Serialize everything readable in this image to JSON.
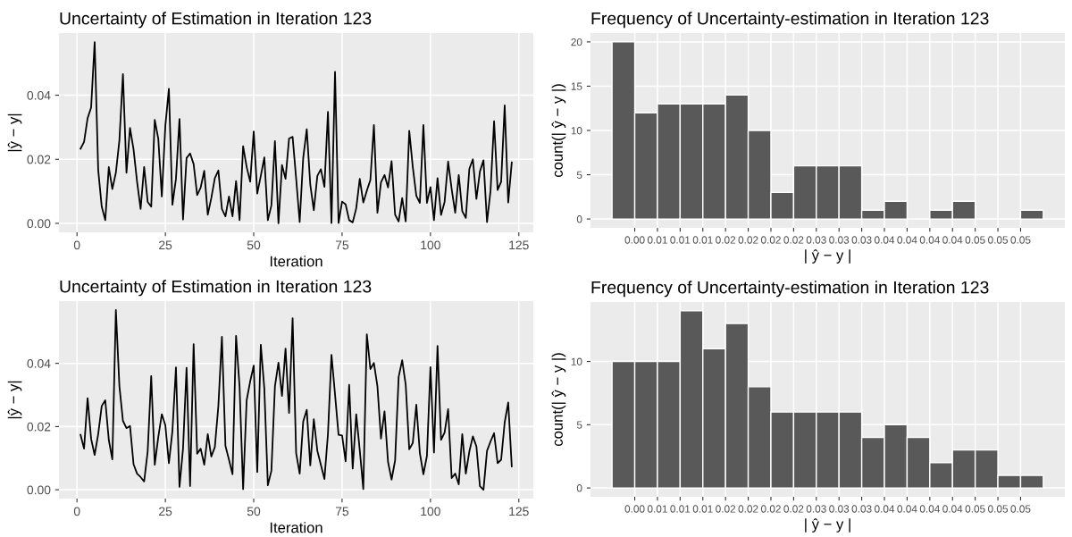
{
  "chart_data": [
    {
      "type": "line",
      "title": "Uncertainty of Estimation in Iteration 123",
      "xlabel": "Iteration",
      "ylabel": "|ŷ − y|",
      "color": "#000000",
      "grid": true,
      "x": [
        1,
        2,
        3,
        4,
        5,
        6,
        7,
        8,
        9,
        10,
        11,
        12,
        13,
        14,
        15,
        16,
        17,
        18,
        19,
        20,
        21,
        22,
        23,
        24,
        25,
        26,
        27,
        28,
        29,
        30,
        31,
        32,
        33,
        34,
        35,
        36,
        37,
        38,
        39,
        40,
        41,
        42,
        43,
        44,
        45,
        46,
        47,
        48,
        49,
        50,
        51,
        52,
        53,
        54,
        55,
        56,
        57,
        58,
        59,
        60,
        61,
        62,
        63,
        64,
        65,
        66,
        67,
        68,
        69,
        70,
        71,
        72,
        73,
        74,
        75,
        76,
        77,
        78,
        79,
        80,
        81,
        82,
        83,
        84,
        85,
        86,
        87,
        88,
        89,
        90,
        91,
        92,
        93,
        94,
        95,
        96,
        97,
        98,
        99,
        100,
        101,
        102,
        103,
        104,
        105,
        106,
        107,
        108,
        109,
        110,
        111,
        112,
        113,
        114,
        115,
        116,
        117,
        118,
        119,
        120,
        121,
        122,
        123
      ],
      "values": [
        0.0233,
        0.0254,
        0.0328,
        0.0362,
        0.0566,
        0.0167,
        0.0052,
        0.001,
        0.0176,
        0.0107,
        0.0158,
        0.0259,
        0.0466,
        0.0158,
        0.0298,
        0.0231,
        0.013,
        0.0045,
        0.0176,
        0.0067,
        0.0052,
        0.0323,
        0.0264,
        0.0084,
        0.0305,
        0.042,
        0.0058,
        0.0139,
        0.0326,
        0.0012,
        0.0204,
        0.0218,
        0.0185,
        0.0088,
        0.0112,
        0.0164,
        0.0027,
        0.0079,
        0.0141,
        0.0165,
        0.0045,
        0.0022,
        0.0084,
        0.0022,
        0.0132,
        0.001,
        0.0241,
        0.0176,
        0.013,
        0.0287,
        0.0093,
        0.0148,
        0.0206,
        0.001,
        0.0056,
        0.0257,
        0.0,
        0.0182,
        0.0139,
        0.0265,
        0.027,
        0.014,
        0.0004,
        0.0204,
        0.0294,
        0.0121,
        0.0041,
        0.0148,
        0.0169,
        0.0114,
        0.0348,
        0.0001,
        0.0473,
        0.0001,
        0.0068,
        0.0059,
        0.001,
        0.0003,
        0.0047,
        0.0139,
        0.0065,
        0.0102,
        0.0135,
        0.0307,
        0.0033,
        0.0128,
        0.0151,
        0.0112,
        0.0194,
        0.0027,
        0.0006,
        0.0079,
        0.0006,
        0.0289,
        0.0176,
        0.0086,
        0.0064,
        0.0307,
        0.0064,
        0.0113,
        0.001,
        0.0141,
        0.0026,
        0.0067,
        0.0193,
        0.0107,
        0.0033,
        0.0151,
        0.0038,
        0.0017,
        0.017,
        0.02,
        0.0076,
        0.0162,
        0.0197,
        0.0004,
        0.0102,
        0.0319,
        0.0104,
        0.013,
        0.0368,
        0.0065,
        0.019
      ],
      "xlim": [
        -5.1,
        129.1
      ],
      "xticks": [
        0,
        25,
        50,
        75,
        100,
        125
      ],
      "ylim": [
        -0.0028,
        0.0594
      ],
      "yticks": [
        {
          "value": 0,
          "label": "0.00"
        },
        {
          "value": 0.02,
          "label": "0.02"
        },
        {
          "value": 0.04,
          "label": "0.04"
        }
      ]
    },
    {
      "type": "histogram",
      "title": "Frequency of Uncertainty-estimation in Iteration 123",
      "xlabel": "| ŷ − y |",
      "ylabel": "count(| ŷ − y |)",
      "color": "#595959",
      "grid": true,
      "bins": [
        0,
        0.003,
        0.006,
        0.009,
        0.012,
        0.015,
        0.018,
        0.021,
        0.024,
        0.027,
        0.03,
        0.033,
        0.036,
        0.039,
        0.042,
        0.045,
        0.048,
        0.051,
        0.054,
        0.057
      ],
      "values": [
        20,
        12,
        13,
        13,
        13,
        14,
        10,
        3,
        6,
        6,
        6,
        1,
        2,
        0,
        1,
        2,
        0,
        0,
        1
      ],
      "xlim": [
        -0.00285,
        0.05985
      ],
      "ylim": [
        -1,
        21
      ],
      "yticks": [
        0,
        5,
        10,
        15,
        20
      ],
      "xticks": [
        {
          "value": 0.003,
          "label": "0.00"
        },
        {
          "value": 0.006,
          "label": "0.01"
        },
        {
          "value": 0.009,
          "label": "0.01"
        },
        {
          "value": 0.012,
          "label": "0.01"
        },
        {
          "value": 0.015,
          "label": "0.02"
        },
        {
          "value": 0.018,
          "label": "0.02"
        },
        {
          "value": 0.021,
          "label": "0.02"
        },
        {
          "value": 0.024,
          "label": "0.02"
        },
        {
          "value": 0.027,
          "label": "0.03"
        },
        {
          "value": 0.03,
          "label": "0.03"
        },
        {
          "value": 0.033,
          "label": "0.03"
        },
        {
          "value": 0.036,
          "label": "0.04"
        },
        {
          "value": 0.039,
          "label": "0.04"
        },
        {
          "value": 0.042,
          "label": "0.04"
        },
        {
          "value": 0.045,
          "label": "0.04"
        },
        {
          "value": 0.048,
          "label": "0.05"
        },
        {
          "value": 0.051,
          "label": "0.05"
        },
        {
          "value": 0.054,
          "label": "0.05"
        }
      ]
    },
    {
      "type": "line",
      "title": "Uncertainty of Estimation in Iteration 123",
      "xlabel": "Iteration",
      "ylabel": "|ŷ − y|",
      "color": "#000000",
      "grid": true,
      "x": [
        1,
        2,
        3,
        4,
        5,
        6,
        7,
        8,
        9,
        10,
        11,
        12,
        13,
        14,
        15,
        16,
        17,
        18,
        19,
        20,
        21,
        22,
        23,
        24,
        25,
        26,
        27,
        28,
        29,
        30,
        31,
        32,
        33,
        34,
        35,
        36,
        37,
        38,
        39,
        40,
        41,
        42,
        43,
        44,
        45,
        46,
        47,
        48,
        49,
        50,
        51,
        52,
        53,
        54,
        55,
        56,
        57,
        58,
        59,
        60,
        61,
        62,
        63,
        64,
        65,
        66,
        67,
        68,
        69,
        70,
        71,
        72,
        73,
        74,
        75,
        76,
        77,
        78,
        79,
        80,
        81,
        82,
        83,
        84,
        85,
        86,
        87,
        88,
        89,
        90,
        91,
        92,
        93,
        94,
        95,
        96,
        97,
        98,
        99,
        100,
        101,
        102,
        103,
        104,
        105,
        106,
        107,
        108,
        109,
        110,
        111,
        112,
        113,
        114,
        115,
        116,
        117,
        118,
        119,
        120,
        121,
        122,
        123
      ],
      "values": [
        0.0174,
        0.013,
        0.029,
        0.0161,
        0.011,
        0.0176,
        0.0265,
        0.0283,
        0.0158,
        0.0096,
        0.0569,
        0.0328,
        0.0218,
        0.0195,
        0.0202,
        0.0081,
        0.0051,
        0.004,
        0.0026,
        0.0121,
        0.036,
        0.0079,
        0.0167,
        0.0239,
        0.0204,
        0.0084,
        0.0186,
        0.0387,
        0.0009,
        0.013,
        0.0386,
        0.0012,
        0.0461,
        0.0114,
        0.013,
        0.0079,
        0.0176,
        0.0105,
        0.0135,
        0.0265,
        0.0484,
        0.0139,
        0.0095,
        0.0049,
        0.0487,
        0.0325,
        0.0002,
        0.0283,
        0.0343,
        0.0393,
        0.0056,
        0.0459,
        0.032,
        0.0014,
        0.006,
        0.0327,
        0.0402,
        0.0297,
        0.0447,
        0.0243,
        0.0543,
        0.0116,
        0.0051,
        0.0216,
        0.0253,
        0.0077,
        0.0223,
        0.0123,
        0.0079,
        0.0034,
        0.0176,
        0.0427,
        0.0302,
        0.0174,
        0.0172,
        0.009,
        0.0332,
        0.0067,
        0.0239,
        0.0125,
        0.0002,
        0.0492,
        0.0382,
        0.0401,
        0.0327,
        0.0162,
        0.0248,
        0.0088,
        0.0032,
        0.0093,
        0.0357,
        0.041,
        0.0332,
        0.0128,
        0.0148,
        0.0269,
        0.0116,
        0.0049,
        0.0107,
        0.0388,
        0.0118,
        0.0455,
        0.0158,
        0.0181,
        0.0255,
        0.0037,
        0.0051,
        0.0017,
        0.0176,
        0.0051,
        0.0121,
        0.0169,
        0.0137,
        0.0011,
        0.0,
        0.0123,
        0.0153,
        0.0179,
        0.0084,
        0.0095,
        0.0213,
        0.0276,
        0.0074
      ],
      "xlim": [
        -5.1,
        129.1
      ],
      "xticks": [
        0,
        25,
        50,
        75,
        100,
        125
      ],
      "ylim": [
        -0.0028,
        0.0597
      ],
      "yticks": [
        {
          "value": 0,
          "label": "0.00"
        },
        {
          "value": 0.02,
          "label": "0.02"
        },
        {
          "value": 0.04,
          "label": "0.04"
        }
      ]
    },
    {
      "type": "histogram",
      "title": "Frequency of Uncertainty-estimation in Iteration 123",
      "xlabel": "| ŷ − y |",
      "ylabel": "count(| ŷ − y |)",
      "color": "#595959",
      "grid": true,
      "bins": [
        0,
        0.003,
        0.006,
        0.009,
        0.012,
        0.015,
        0.018,
        0.021,
        0.024,
        0.027,
        0.03,
        0.033,
        0.036,
        0.039,
        0.042,
        0.045,
        0.048,
        0.051,
        0.054,
        0.057
      ],
      "values": [
        10,
        10,
        10,
        14,
        11,
        13,
        8,
        6,
        6,
        6,
        6,
        4,
        5,
        4,
        2,
        3,
        3,
        1,
        1
      ],
      "xlim": [
        -0.00285,
        0.05985
      ],
      "ylim": [
        -0.7,
        14.7
      ],
      "yticks": [
        0,
        5,
        10
      ],
      "xticks": [
        {
          "value": 0.003,
          "label": "0.00"
        },
        {
          "value": 0.006,
          "label": "0.01"
        },
        {
          "value": 0.009,
          "label": "0.01"
        },
        {
          "value": 0.012,
          "label": "0.01"
        },
        {
          "value": 0.015,
          "label": "0.02"
        },
        {
          "value": 0.018,
          "label": "0.02"
        },
        {
          "value": 0.021,
          "label": "0.02"
        },
        {
          "value": 0.024,
          "label": "0.02"
        },
        {
          "value": 0.027,
          "label": "0.03"
        },
        {
          "value": 0.03,
          "label": "0.03"
        },
        {
          "value": 0.033,
          "label": "0.03"
        },
        {
          "value": 0.036,
          "label": "0.04"
        },
        {
          "value": 0.039,
          "label": "0.04"
        },
        {
          "value": 0.042,
          "label": "0.04"
        },
        {
          "value": 0.045,
          "label": "0.04"
        },
        {
          "value": 0.048,
          "label": "0.05"
        },
        {
          "value": 0.051,
          "label": "0.05"
        },
        {
          "value": 0.054,
          "label": "0.05"
        }
      ]
    }
  ]
}
